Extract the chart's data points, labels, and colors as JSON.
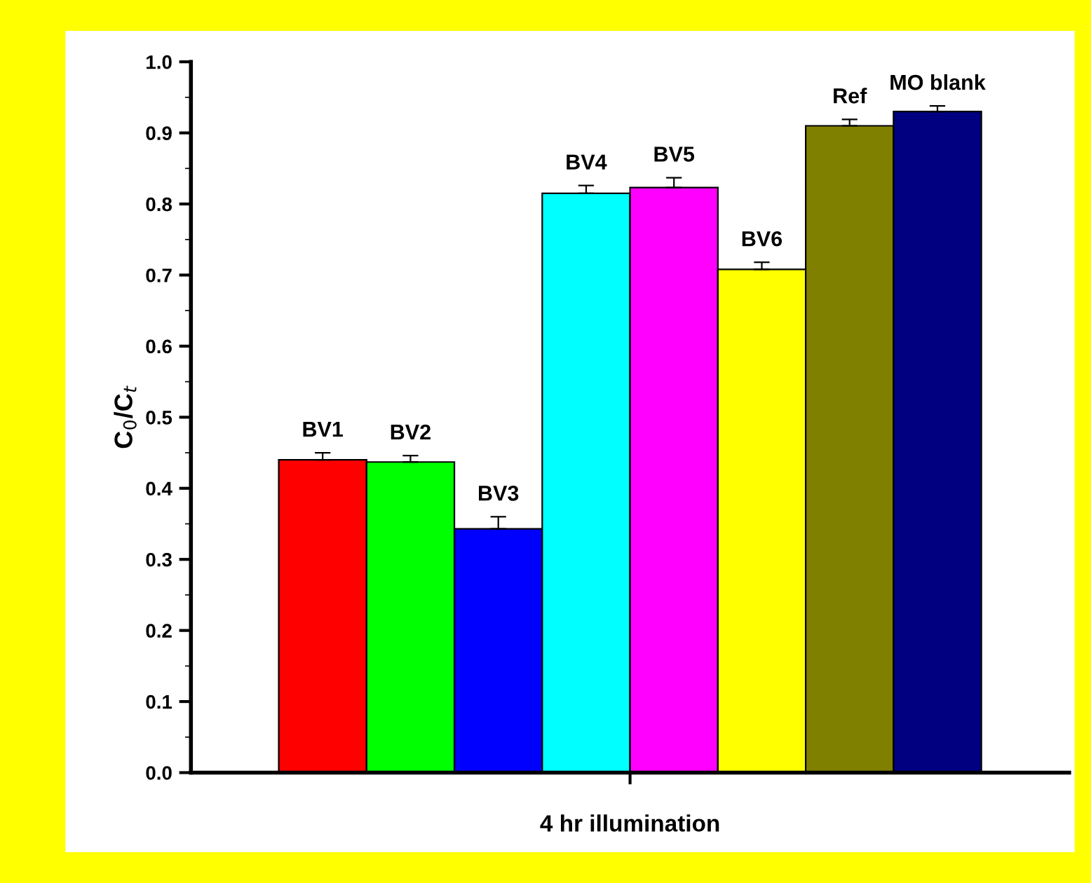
{
  "chart_data": {
    "type": "bar",
    "xlabel": "4 hr illumination",
    "ylabel": "C$_{0}$/C$_{t}$",
    "categories": [
      null
    ],
    "series": [
      {
        "name": "BV1",
        "color": "#ff0000",
        "values": [
          0.44
        ],
        "errors": [
          0.01
        ]
      },
      {
        "name": "BV2",
        "color": "#00ff00",
        "values": [
          0.437
        ],
        "errors": [
          0.009
        ]
      },
      {
        "name": "BV3",
        "color": "#0000ff",
        "values": [
          0.343
        ],
        "errors": [
          0.017
        ]
      },
      {
        "name": "BV4",
        "color": "#00ffff",
        "values": [
          0.815
        ],
        "errors": [
          0.011
        ]
      },
      {
        "name": "BV5",
        "color": "#ff00ff",
        "values": [
          0.823
        ],
        "errors": [
          0.014
        ]
      },
      {
        "name": "BV6",
        "color": "#ffff00",
        "values": [
          0.708
        ],
        "errors": [
          0.01
        ]
      },
      {
        "name": "Ref",
        "color": "#808000",
        "values": [
          0.91
        ],
        "errors": [
          0.009
        ]
      },
      {
        "name": "MO blank",
        "color": "#000080",
        "values": [
          0.93
        ],
        "errors": [
          0.008
        ]
      }
    ],
    "ylim": [
      0,
      1.0
    ],
    "yticks": [
      {
        "value": 0,
        "label": "0.0"
      },
      0.1,
      0.2,
      0.3,
      0.4,
      0.5,
      0.6,
      0.7,
      0.8,
      0.9,
      {
        "value": 1.0,
        "label": "1.0"
      }
    ],
    "grid": false,
    "legend": false
  }
}
